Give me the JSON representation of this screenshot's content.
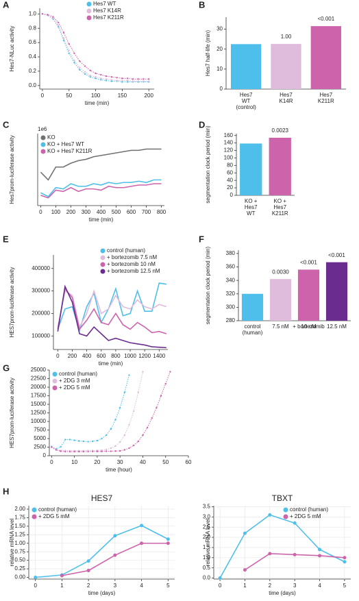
{
  "chart_data": [
    {
      "type": "line",
      "panel": "A",
      "xlabel": "time (min)",
      "ylabel": "Hes7-NLuc activity",
      "legend": "upper right",
      "markers": true,
      "x": [
        0,
        10,
        20,
        30,
        40,
        50,
        60,
        70,
        80,
        90,
        100,
        110,
        120,
        130,
        140,
        150,
        160,
        170,
        180,
        190,
        200
      ],
      "xlim": [
        -5,
        210
      ],
      "xticks": [
        0,
        50,
        100,
        150,
        200
      ],
      "ylim": [
        -0.05,
        1.08
      ],
      "yticks": [
        {
          "value": 0,
          "label": "0.0"
        },
        {
          "value": 0.2,
          "label": "0.2"
        },
        {
          "value": 0.4,
          "label": "0.4"
        },
        {
          "value": 0.6,
          "label": "0.6"
        },
        {
          "value": 0.8,
          "label": "0.8"
        },
        {
          "value": 1,
          "label": "1.0"
        }
      ],
      "series": [
        {
          "name": "Hes7 WT",
          "color": "#4dbfea",
          "values": [
            1.0,
            0.98,
            0.93,
            0.82,
            0.63,
            0.45,
            0.32,
            0.22,
            0.16,
            0.12,
            0.1,
            0.08,
            0.07,
            0.06,
            0.06,
            0.05,
            0.05,
            0.05,
            0.05,
            0.05,
            0.05
          ]
        },
        {
          "name": "Hes7 K14R",
          "color": "#e0bcdc",
          "values": [
            1.0,
            0.98,
            0.94,
            0.84,
            0.66,
            0.49,
            0.35,
            0.25,
            0.19,
            0.14,
            0.12,
            0.1,
            0.09,
            0.08,
            0.07,
            0.07,
            0.07,
            0.06,
            0.06,
            0.06,
            0.06
          ]
        },
        {
          "name": "Hes7 K211R",
          "color": "#cc63ab",
          "values": [
            1.0,
            0.99,
            0.96,
            0.88,
            0.74,
            0.58,
            0.45,
            0.34,
            0.27,
            0.21,
            0.17,
            0.15,
            0.13,
            0.12,
            0.11,
            0.1,
            0.1,
            0.09,
            0.09,
            0.09,
            0.09
          ]
        }
      ]
    },
    {
      "type": "bar",
      "panel": "B",
      "ylabel": "Hes7 half-life (min)",
      "categories": [
        [
          "Hes7",
          "WT",
          "(control)"
        ],
        [
          "Hes7",
          "K14R"
        ],
        [
          "Hes7",
          "K211R"
        ]
      ],
      "values": [
        22.5,
        22.6,
        31.5
      ],
      "annotations": [
        null,
        "1.00",
        "<0.001"
      ],
      "colors": [
        "#4dbfea",
        "#e0bcdc",
        "#cc63ab"
      ],
      "ylim": [
        0,
        36
      ],
      "yticks": [
        0,
        10,
        20,
        30
      ]
    },
    {
      "type": "line",
      "panel": "C",
      "xlabel": "time (min)",
      "ylabel": "Hes7prom-luciferase activity",
      "offset_label": "1e6",
      "legend": "upper left",
      "x": [
        0,
        50,
        100,
        150,
        200,
        250,
        300,
        350,
        400,
        450,
        500,
        550,
        600,
        650,
        700,
        750,
        800
      ],
      "xlim": [
        -20,
        820
      ],
      "xticks": [
        0,
        100,
        200,
        300,
        400,
        500,
        600,
        700,
        800
      ],
      "ylim": [
        0,
        5.6
      ],
      "series": [
        {
          "name": "KO",
          "color": "#707070",
          "values": [
            2.6,
            2.0,
            3.0,
            3.0,
            3.3,
            3.5,
            3.6,
            3.8,
            3.9,
            4.0,
            4.1,
            4.2,
            4.3,
            4.3,
            4.4,
            4.4,
            4.4
          ]
        },
        {
          "name": "KO + Hes7 WT",
          "color": "#4dbfea",
          "values": [
            1.0,
            0.7,
            1.4,
            1.3,
            1.7,
            1.5,
            1.5,
            1.7,
            1.6,
            1.8,
            1.7,
            1.8,
            1.8,
            1.9,
            1.8,
            2.0,
            2.0
          ]
        },
        {
          "name": "KO + Hes7 K211R",
          "color": "#cc63ab",
          "values": [
            0.8,
            0.6,
            1.2,
            1.1,
            1.4,
            1.1,
            1.3,
            1.3,
            1.2,
            1.5,
            1.4,
            1.4,
            1.5,
            1.6,
            1.6,
            1.7,
            1.7
          ]
        }
      ]
    },
    {
      "type": "bar",
      "panel": "D",
      "ylabel": "segmentation clock period (min)",
      "categories": [
        [
          "KO +",
          "Hes7",
          "WT"
        ],
        [
          "KO +",
          "Hes7",
          "K211R"
        ]
      ],
      "values": [
        138.5,
        154
      ],
      "annotations": [
        null,
        "0.0023"
      ],
      "colors": [
        "#4dbfea",
        "#cc63ab"
      ],
      "ylim": [
        0,
        165
      ],
      "yticks": [
        0,
        20,
        40,
        60,
        80,
        100,
        120,
        140,
        160
      ]
    },
    {
      "type": "line",
      "panel": "E",
      "xlabel": "time (min)",
      "ylabel": "HES7prom-luciferase activity",
      "legend": "upper right",
      "x": [
        0,
        100,
        200,
        300,
        400,
        500,
        600,
        700,
        800,
        900,
        1000,
        1100,
        1200,
        1300,
        1400,
        1500
      ],
      "xlim": [
        -60,
        1520
      ],
      "xticks": [
        0,
        200,
        400,
        600,
        800,
        1000,
        1200,
        1400
      ],
      "ylim": [
        40000,
        460000
      ],
      "yticks": [
        100000,
        200000,
        300000,
        400000
      ],
      "series": [
        {
          "name": "control (human)",
          "color": "#4dbfea",
          "values": [
            130000,
            220000,
            230000,
            125000,
            230000,
            290000,
            160000,
            220000,
            310000,
            190000,
            200000,
            300000,
            210000,
            210000,
            335000,
            330000
          ]
        },
        {
          "name": "+ bortezomib  7.5 nM",
          "color": "#e0bcdc",
          "values": [
            140000,
            300000,
            280000,
            140000,
            200000,
            300000,
            200000,
            220000,
            280000,
            230000,
            220000,
            260000,
            230000,
            220000,
            240000,
            230000
          ]
        },
        {
          "name": "+ bortezomib  10 nM",
          "color": "#cc63ab",
          "values": [
            130000,
            310000,
            270000,
            130000,
            170000,
            220000,
            160000,
            150000,
            200000,
            150000,
            130000,
            160000,
            140000,
            115000,
            120000,
            110000
          ]
        },
        {
          "name": "+ bortezomib  12.5 nM",
          "color": "#6a2d8f",
          "values": [
            120000,
            320000,
            250000,
            110000,
            100000,
            140000,
            110000,
            80000,
            90000,
            80000,
            70000,
            65000,
            60000,
            52000,
            50000,
            48000
          ]
        }
      ]
    },
    {
      "type": "bar",
      "panel": "F",
      "ylabel": "segmentation clock period (min)",
      "group_label": "+ bortezomib",
      "categories": [
        [
          "control",
          "(human)"
        ],
        [
          "7.5 nM"
        ],
        [
          "10 nM"
        ],
        [
          "12.5 nM"
        ]
      ],
      "values": [
        320,
        342,
        356,
        367
      ],
      "annotations": [
        null,
        "0.0030",
        "<0.001",
        "<0.001"
      ],
      "colors": [
        "#4dbfea",
        "#e0bcdc",
        "#cc63ab",
        "#6a2d8f"
      ],
      "ylim": [
        280,
        385
      ],
      "yticks": [
        280,
        300,
        320,
        340,
        360,
        380
      ]
    },
    {
      "type": "line",
      "panel": "G",
      "xlabel": "time (hour)",
      "ylabel": "HES7prom-luciferase activity",
      "legend": "upper left",
      "markers": true,
      "x": [
        0,
        2,
        4,
        6,
        8,
        10,
        12,
        14,
        16,
        18,
        20,
        22,
        24,
        26,
        28,
        30,
        32,
        34,
        36,
        38,
        40,
        42,
        44,
        46,
        48,
        50,
        52,
        54
      ],
      "xlim": [
        -1,
        60
      ],
      "xticks": [
        0,
        10,
        20,
        30,
        40,
        50,
        60
      ],
      "ylim": [
        0,
        25000
      ],
      "yticks": [
        0,
        2500,
        5000,
        7500,
        10000,
        12500,
        15000,
        17500,
        20000,
        22500,
        25000
      ],
      "series": [
        {
          "name": "control (human)",
          "color": "#4dbfea",
          "values": [
            2700,
            2000,
            2600,
            4700,
            4700,
            4500,
            4300,
            4200,
            4100,
            4200,
            4400,
            5000,
            6000,
            7800,
            10500,
            14000,
            18500,
            23500,
            null,
            null,
            null,
            null,
            null,
            null,
            null,
            null,
            null,
            null
          ]
        },
        {
          "name": "+ 2DG 3 mM",
          "color": "#e0bcdc",
          "values": [
            2600,
            1800,
            1500,
            1500,
            1450,
            1450,
            1450,
            1450,
            1500,
            1500,
            1550,
            1600,
            1800,
            2200,
            2800,
            4000,
            6000,
            9000,
            13000,
            18500,
            24500,
            null,
            null,
            null,
            null,
            null,
            null,
            null
          ]
        },
        {
          "name": "+ 2DG 5 mM",
          "color": "#cc63ab",
          "values": [
            2500,
            1700,
            1300,
            1200,
            1200,
            1200,
            1200,
            1200,
            1200,
            1250,
            1250,
            1250,
            1300,
            1300,
            1350,
            1400,
            1700,
            2200,
            3000,
            4200,
            6000,
            8200,
            11000,
            14000,
            17500,
            21000,
            24500,
            null
          ]
        }
      ]
    },
    {
      "type": "line",
      "panel": "H",
      "title": "HES7",
      "xlabel": "time (days)",
      "ylabel": "relative mRNA level",
      "legend": "upper left",
      "markers": true,
      "grid": true,
      "x": [
        0,
        1,
        2,
        3,
        4,
        5
      ],
      "xlim": [
        -0.25,
        5.25
      ],
      "xticks": [
        0,
        1,
        2,
        3,
        4,
        5
      ],
      "ylim": [
        -0.05,
        2.1
      ],
      "yticks": [
        {
          "value": 0,
          "label": "0.00"
        },
        {
          "value": 0.25,
          "label": "0.25"
        },
        {
          "value": 0.5,
          "label": "0.50"
        },
        {
          "value": 0.75,
          "label": "0.75"
        },
        {
          "value": 1,
          "label": "1.00"
        },
        {
          "value": 1.25,
          "label": "1.25"
        },
        {
          "value": 1.5,
          "label": "1.50"
        },
        {
          "value": 1.75,
          "label": "1.75"
        },
        {
          "value": 2,
          "label": "2.00"
        }
      ],
      "series": [
        {
          "name": "control (human)",
          "color": "#4dbfea",
          "values": [
            0,
            0.07,
            0.48,
            1.22,
            1.52,
            1.12
          ]
        },
        {
          "name": "+ 2DG 5 mM",
          "color": "#cc63ab",
          "values": [
            null,
            0.05,
            0.2,
            0.65,
            1.0,
            1.0
          ]
        }
      ]
    },
    {
      "type": "line",
      "title": "TBXT",
      "xlabel": "time (days)",
      "ylabel": "relative mRNA level",
      "legend": "upper right",
      "markers": true,
      "grid": true,
      "x": [
        0,
        1,
        2,
        3,
        4,
        5
      ],
      "xlim": [
        -0.25,
        5.25
      ],
      "xticks": [
        0,
        1,
        2,
        3,
        4,
        5
      ],
      "ylim": [
        -0.05,
        3.55
      ],
      "yticks": [
        {
          "value": 0,
          "label": "0.0"
        },
        {
          "value": 0.5,
          "label": "0.5"
        },
        {
          "value": 1,
          "label": "1.0"
        },
        {
          "value": 1.5,
          "label": "1.5"
        },
        {
          "value": 2,
          "label": "2.0"
        },
        {
          "value": 2.5,
          "label": "2.5"
        },
        {
          "value": 3,
          "label": "3.0"
        },
        {
          "value": 3.5,
          "label": "3.5"
        }
      ],
      "series": [
        {
          "name": "control (human)",
          "color": "#4dbfea",
          "values": [
            0,
            2.2,
            3.1,
            2.7,
            1.4,
            0.8
          ]
        },
        {
          "name": "+ 2DG 5 mM",
          "color": "#cc63ab",
          "values": [
            null,
            0.4,
            1.2,
            1.15,
            1.1,
            1.0
          ]
        }
      ]
    }
  ]
}
